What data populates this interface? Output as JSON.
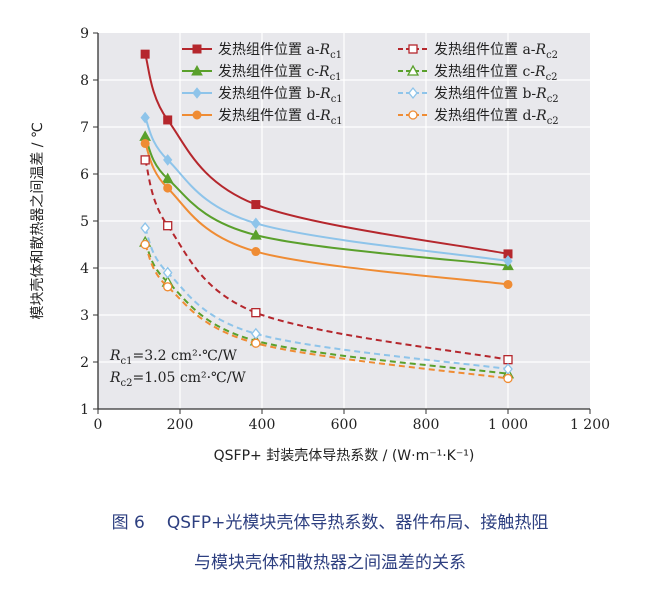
{
  "chart_data": {
    "type": "line",
    "xlabel": "QSFP+ 封装壳体导热系数 / (W·m⁻¹·K⁻¹)",
    "ylabel": "模块壳体和散热器之间温差 / ℃",
    "xlim": [
      0,
      1200
    ],
    "ylim": [
      1,
      9
    ],
    "xticks": [
      0,
      200,
      400,
      600,
      800,
      1000,
      1200
    ],
    "xtick_labels": [
      "0",
      "200",
      "400",
      "600",
      "800",
      "1 000",
      "1 200"
    ],
    "yticks": [
      1,
      2,
      3,
      4,
      5,
      6,
      7,
      8,
      9
    ],
    "ytick_labels": [
      "1",
      "2",
      "3",
      "4",
      "5",
      "6",
      "7",
      "8",
      "9"
    ],
    "grid": true,
    "legend_position": "top",
    "series": [
      {
        "name": "发热组件位置 a-Rc1",
        "label_main": "发热组件位置 a-",
        "label_r": "R",
        "label_sub": "c1",
        "color": "#b5272d",
        "marker": "square-filled",
        "dash": "solid",
        "x": [
          115,
          170,
          385,
          1000
        ],
        "values": [
          8.55,
          7.15,
          5.35,
          4.3
        ]
      },
      {
        "name": "发热组件位置 c-Rc1",
        "label_main": "发热组件位置 c-",
        "label_r": "R",
        "label_sub": "c1",
        "color": "#5aa02c",
        "marker": "triangle-filled",
        "dash": "solid",
        "x": [
          115,
          170,
          385,
          1000
        ],
        "values": [
          6.8,
          5.9,
          4.7,
          4.05
        ]
      },
      {
        "name": "发热组件位置 b-Rc1",
        "label_main": "发热组件位置 b-",
        "label_r": "R",
        "label_sub": "c1",
        "color": "#8ec4ea",
        "marker": "diamond-filled",
        "dash": "solid",
        "x": [
          115,
          170,
          385,
          1000
        ],
        "values": [
          7.2,
          6.3,
          4.95,
          4.15
        ]
      },
      {
        "name": "发热组件位置 d-Rc1",
        "label_main": "发热组件位置 d-",
        "label_r": "R",
        "label_sub": "c1",
        "color": "#ef8c34",
        "marker": "circle-filled",
        "dash": "solid",
        "x": [
          115,
          170,
          385,
          1000
        ],
        "values": [
          6.65,
          5.7,
          4.35,
          3.65
        ]
      },
      {
        "name": "发热组件位置 a-Rc2",
        "label_main": "发热组件位置 a-",
        "label_r": "R",
        "label_sub": "c2",
        "color": "#b5272d",
        "marker": "square-open",
        "dash": "dashed",
        "x": [
          115,
          170,
          385,
          1000
        ],
        "values": [
          6.3,
          4.9,
          3.05,
          2.05
        ]
      },
      {
        "name": "发热组件位置 c-Rc2",
        "label_main": "发热组件位置 c-",
        "label_r": "R",
        "label_sub": "c2",
        "color": "#5aa02c",
        "marker": "triangle-open",
        "dash": "dashed",
        "x": [
          115,
          170,
          385,
          1000
        ],
        "values": [
          4.55,
          3.7,
          2.45,
          1.75
        ]
      },
      {
        "name": "发热组件位置 b-Rc2",
        "label_main": "发热组件位置 b-",
        "label_r": "R",
        "label_sub": "c2",
        "color": "#8ec4ea",
        "marker": "diamond-open",
        "dash": "dashed",
        "x": [
          115,
          170,
          385,
          1000
        ],
        "values": [
          4.85,
          3.9,
          2.6,
          1.85
        ]
      },
      {
        "name": "发热组件位置 d-Rc2",
        "label_main": "发热组件位置 d-",
        "label_r": "R",
        "label_sub": "c2",
        "color": "#ef8c34",
        "marker": "circle-open",
        "dash": "dashed",
        "x": [
          115,
          170,
          385,
          1000
        ],
        "values": [
          4.5,
          3.6,
          2.4,
          1.65
        ]
      }
    ],
    "annotations": [
      {
        "r": "R",
        "sub": "c1",
        "rest": "=3.2 cm²·℃/W"
      },
      {
        "r": "R",
        "sub": "c2",
        "rest": "=1.05 cm²·℃/W"
      }
    ]
  },
  "caption": {
    "label": "图 6",
    "line1": "QSFP+光模块壳体导热系数、器件布局、接触热阻",
    "line2": "与模块壳体和散热器之间温差的关系"
  }
}
